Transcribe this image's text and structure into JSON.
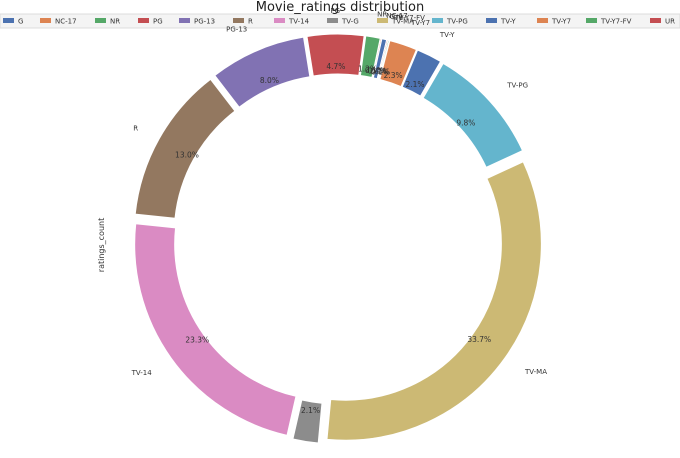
{
  "chart_data": {
    "type": "pie",
    "variant": "donut",
    "title": "Movie_ratings distribution",
    "ylabel": "ratings_count",
    "legend_placement": "top",
    "categories": [
      "G",
      "NC-17",
      "NR",
      "PG",
      "PG-13",
      "R",
      "TV-14",
      "TV-G",
      "TV-MA",
      "TV-PG",
      "TV-Y",
      "TV-Y7",
      "TV-Y7-FV",
      "UR"
    ],
    "values": [
      0.4,
      0.1,
      1.2,
      4.7,
      8.0,
      13.0,
      23.3,
      2.1,
      33.7,
      9.8,
      2.1,
      2.3,
      0.1,
      0.1
    ],
    "value_labels": [
      "0.4%",
      "0.1%",
      "1.2%",
      "4.7%",
      "8.0%",
      "13.0%",
      "23.3%",
      "2.1%",
      "33.7%",
      "9.8%",
      "2.1%",
      "2.3%",
      "0.1%",
      "0.1%"
    ],
    "colors": [
      "#4c72b0",
      "#dd8452",
      "#55a868",
      "#c44e52",
      "#8172b3",
      "#937860",
      "#da8bc3",
      "#8c8c8c",
      "#ccb974",
      "#64b5cd",
      "#4c72b0",
      "#dd8452",
      "#55a868",
      "#c44e52"
    ],
    "order_clockwise": [
      "R",
      "PG-13",
      "PG",
      "NR",
      "NC-17",
      "G",
      "UR",
      "TV-Y7-FV",
      "TV-Y7",
      "TV-Y",
      "TV-PG",
      "TV-MA",
      "TV-G",
      "TV-14"
    ],
    "exploded": true
  }
}
